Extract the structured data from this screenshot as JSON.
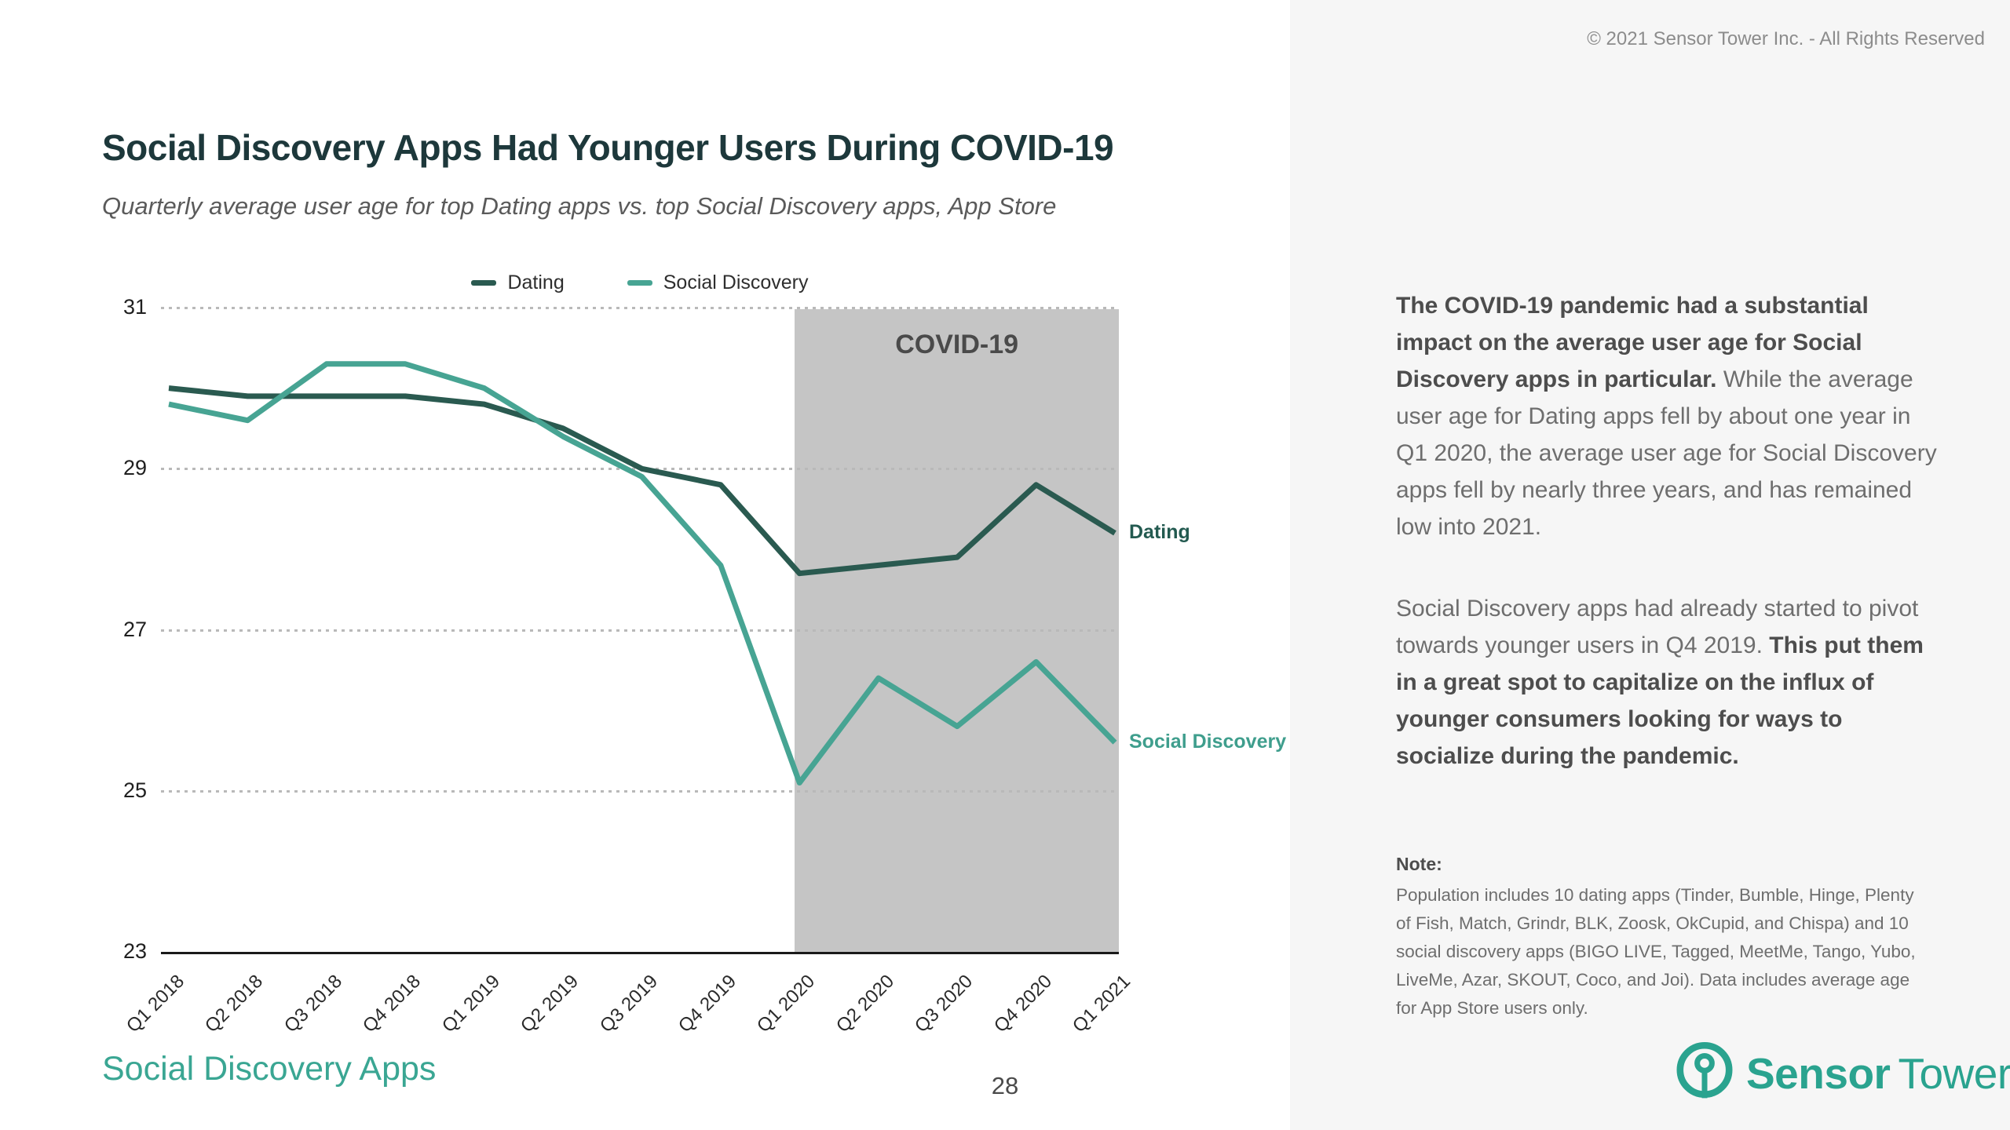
{
  "header": {
    "copyright": "© 2021 Sensor Tower Inc. - All Rights Reserved"
  },
  "title": "Social Discovery Apps Had Younger Users During COVID-19",
  "subtitle": "Quarterly average user age for top Dating apps vs. top Social Discovery apps, App Store",
  "chart_data": {
    "type": "line",
    "categories": [
      "Q1 2018",
      "Q2 2018",
      "Q3 2018",
      "Q4 2018",
      "Q1 2019",
      "Q2 2019",
      "Q3 2019",
      "Q4 2019",
      "Q1 2020",
      "Q2 2020",
      "Q3 2020",
      "Q4 2020",
      "Q1 2021"
    ],
    "series": [
      {
        "name": "Dating",
        "color": "#2a5a50",
        "label_color": "#235a50",
        "values": [
          30.0,
          29.9,
          29.9,
          29.9,
          29.8,
          29.5,
          29.0,
          28.8,
          27.7,
          27.8,
          27.9,
          28.8,
          28.2
        ]
      },
      {
        "name": "Social Discovery",
        "color": "#47a493",
        "label_color": "#3f9e8d",
        "values": [
          29.8,
          29.6,
          30.3,
          30.3,
          30.0,
          29.4,
          28.9,
          27.8,
          25.1,
          26.4,
          25.8,
          26.6,
          25.6
        ]
      }
    ],
    "xlabel": "",
    "ylabel": "",
    "ylim": [
      23,
      31
    ],
    "yticks": [
      31,
      29,
      27,
      25,
      23
    ],
    "grid": "horizontal dotted",
    "legend_position": "top center",
    "annotation": {
      "label": "COVID-19",
      "start_category": "Q1 2020",
      "end": "chart right edge",
      "fill": "#c5c5c5",
      "label_color": "#4a4a4a"
    }
  },
  "insight": {
    "para1_bold": "The COVID-19 pandemic had a substantial impact on the average user age for Social Discovery apps in particular.",
    "para1_rest": " While the average user age for Dating apps fell by about one year in Q1 2020, the average user age for Social Discovery apps fell by nearly three years, and has remained low into 2021.",
    "para2_start": "Social Discovery apps had already started to pivot towards younger users in Q4 2019. ",
    "para2_bold": "This put them in a great spot to capitalize on the influx of younger consumers looking for ways to socialize during the pandemic."
  },
  "note": {
    "heading": "Note:",
    "body": "Population includes 10 dating apps (Tinder, Bumble, Hinge, Plenty of Fish, Match, Grindr, BLK, Zoosk, OkCupid, and Chispa) and 10 social discovery apps (BIGO LIVE, Tagged, MeetMe, Tango, Yubo, LiveMe, Azar, SKOUT, Coco, and Joi). Data includes average age for App Store users only.",
    "heading_color": "#4d4d4d"
  },
  "footer": {
    "section": "Social Discovery Apps",
    "page_number": "28"
  },
  "logo": {
    "brand_bold": "Sensor",
    "brand_regular": "Tower",
    "color": "#2aa38f"
  },
  "colors": {
    "title_text": "#1d383b",
    "panel_bg": "#f6f6f6",
    "covid_region": "#c5c5c5",
    "dating_line": "#2a5a50",
    "social_discovery_line": "#47a493",
    "accent_teal": "#3aa693"
  }
}
